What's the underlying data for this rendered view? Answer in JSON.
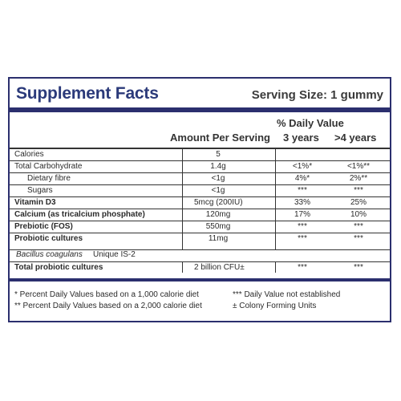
{
  "header": {
    "title": "Supplement Facts",
    "serving": "Serving Size: 1 gummy"
  },
  "columns": {
    "amount": "Amount Per Serving",
    "daily_value": "% Daily Value",
    "dv_3": "3 years",
    "dv_4": ">4 years"
  },
  "rows": [
    {
      "name": "Calories",
      "amount": "5",
      "dv3": "",
      "dv4": ""
    },
    {
      "name": "Total Carbohydrate",
      "amount": "1.4g",
      "dv3": "<1%*",
      "dv4": "<1%**"
    },
    {
      "name": "Dietary fibre",
      "amount": "<1g",
      "dv3": "4%*",
      "dv4": "2%**"
    },
    {
      "name": "Sugars",
      "amount": "<1g",
      "dv3": "***",
      "dv4": "***"
    },
    {
      "name": "Vitamin D3",
      "amount": "5mcg (200IU)",
      "dv3": "33%",
      "dv4": "25%"
    },
    {
      "name": "Calcium (as tricalcium phosphate)",
      "amount": "120mg",
      "dv3": "17%",
      "dv4": "10%"
    },
    {
      "name": "Prebiotic (FOS)",
      "amount": "550mg",
      "dv3": "***",
      "dv4": "***"
    },
    {
      "name": "Probiotic cultures",
      "amount": "11mg",
      "dv3": "***",
      "dv4": "***"
    },
    {
      "name": "Bacillus coagulans",
      "name_suffix": "Unique IS-2",
      "amount": "",
      "dv3": "",
      "dv4": ""
    },
    {
      "name": "Total probiotic cultures",
      "amount": "2 billion CFU±",
      "dv3": "***",
      "dv4": "***"
    }
  ],
  "footnotes": {
    "f1": "* Percent Daily Values based on a 1,000 calorie diet",
    "f2": "** Percent Daily Values based on a 2,000 calorie diet",
    "f3": "*** Daily Value not established",
    "f4": "± Colony Forming Units"
  }
}
